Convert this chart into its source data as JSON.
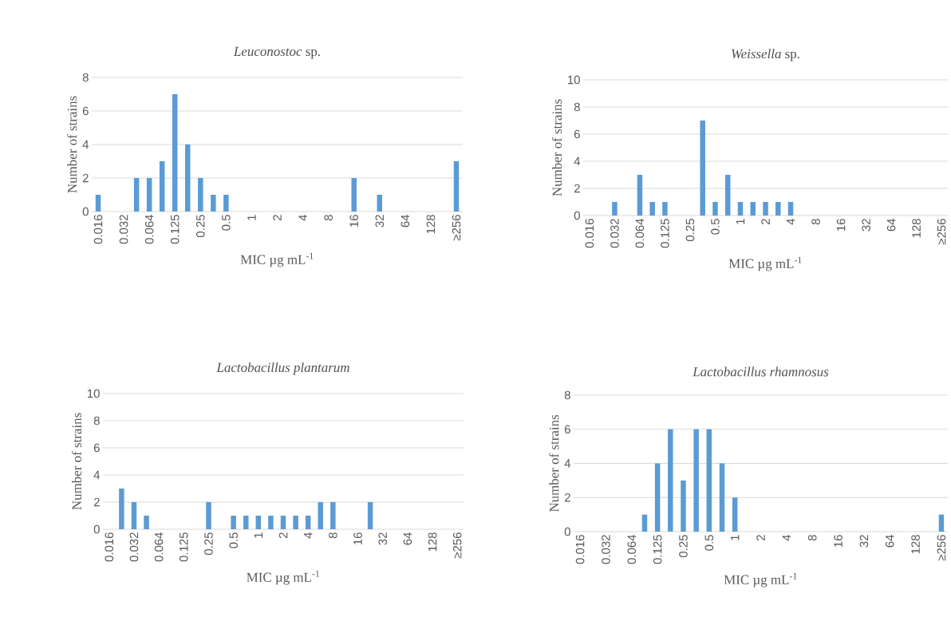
{
  "chart_data": [
    {
      "type": "bar",
      "title": "*Leuconostoc* sp.",
      "xlabel": "MIC µg mL$^{-1}$",
      "ylabel": "Number of strains",
      "color": "#5b9bd5",
      "grid": "y",
      "categories": [
        "0.016",
        null,
        "0.032",
        null,
        "0.064",
        null,
        "0.125",
        null,
        "0.25",
        null,
        "0.5",
        null,
        "1",
        null,
        "2",
        null,
        "4",
        null,
        "8",
        null,
        "16",
        null,
        "32",
        null,
        "64",
        null,
        "128",
        null,
        "≥256"
      ],
      "values": [
        1,
        0,
        0,
        2,
        2,
        3,
        7,
        4,
        2,
        1,
        1,
        0,
        0,
        0,
        0,
        0,
        0,
        0,
        0,
        0,
        2,
        0,
        1,
        0,
        0,
        0,
        0,
        0,
        3
      ],
      "ylim": [
        0,
        8
      ],
      "yticks": [
        0,
        2,
        4,
        6,
        8
      ]
    },
    {
      "type": "bar",
      "title": "*Weissella* sp.",
      "xlabel": "MIC µg mL$^{-1}$",
      "ylabel": "Number of strains",
      "color": "#5b9bd5",
      "grid": "y",
      "categories": [
        "0.016",
        null,
        "0.032",
        null,
        "0.064",
        null,
        "0.125",
        null,
        "0.25",
        null,
        "0.5",
        null,
        "1",
        null,
        "2",
        null,
        "4",
        null,
        "8",
        null,
        "16",
        null,
        "32",
        null,
        "64",
        null,
        "128",
        null,
        "≥256"
      ],
      "values": [
        0,
        0,
        1,
        0,
        3,
        1,
        1,
        0,
        0,
        7,
        1,
        3,
        1,
        1,
        1,
        1,
        1,
        0,
        0,
        0,
        0,
        0,
        0,
        0,
        0,
        0,
        0,
        0,
        0
      ],
      "ylim": [
        0,
        10
      ],
      "yticks": [
        0,
        2,
        4,
        6,
        8,
        10
      ]
    },
    {
      "type": "bar",
      "title": "*Lactobacillus plantarum*",
      "xlabel": "MIC µg mL$^{-1}$",
      "ylabel": "Number of strains",
      "color": "#5b9bd5",
      "grid": "y",
      "categories": [
        "0.016",
        null,
        "0.032",
        null,
        "0.064",
        null,
        "0.125",
        null,
        "0.25",
        null,
        "0.5",
        null,
        "1",
        null,
        "2",
        null,
        "4",
        null,
        "8",
        null,
        "16",
        null,
        "32",
        null,
        "64",
        null,
        "128",
        null,
        "≥256"
      ],
      "values": [
        0,
        3,
        2,
        1,
        0,
        0,
        0,
        0,
        2,
        0,
        1,
        1,
        1,
        1,
        1,
        1,
        1,
        2,
        2,
        0,
        0,
        2,
        0,
        0,
        0,
        0,
        0,
        0,
        0
      ],
      "ylim": [
        0,
        10
      ],
      "yticks": [
        0,
        2,
        4,
        6,
        8,
        10
      ]
    },
    {
      "type": "bar",
      "title": "*Lactobacillus rhamnosus*",
      "xlabel": "MIC µg mL$^{-1}$",
      "ylabel": "Number of strains",
      "color": "#5b9bd5",
      "grid": "y",
      "categories": [
        "0.016",
        null,
        "0.032",
        null,
        "0.064",
        null,
        "0.125",
        null,
        "0.25",
        null,
        "0.5",
        null,
        "1",
        null,
        "2",
        null,
        "4",
        null,
        "8",
        null,
        "16",
        null,
        "32",
        null,
        "64",
        null,
        "128",
        null,
        "≥256"
      ],
      "values": [
        0,
        0,
        0,
        0,
        0,
        1,
        4,
        6,
        3,
        6,
        6,
        4,
        2,
        0,
        0,
        0,
        0,
        0,
        0,
        0,
        0,
        0,
        0,
        0,
        0,
        0,
        0,
        0,
        1
      ],
      "ylim": [
        0,
        8
      ],
      "yticks": [
        0,
        2,
        4,
        6,
        8
      ]
    }
  ]
}
